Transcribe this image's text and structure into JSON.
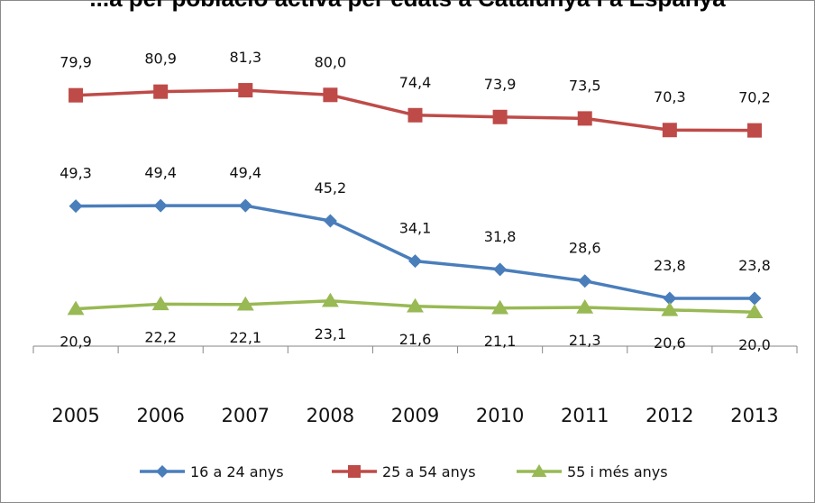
{
  "chart_data": {
    "type": "line",
    "title": "...a per població activa per edats a Catalunya i a Espanya",
    "categories": [
      "2005",
      "2006",
      "2007",
      "2008",
      "2009",
      "2010",
      "2011",
      "2012",
      "2013"
    ],
    "series": [
      {
        "name": "16 a 24 anys",
        "color": "#4a7ebb",
        "marker": "diamond",
        "values": [
          49.3,
          49.4,
          49.4,
          45.2,
          34.1,
          31.8,
          28.6,
          23.8,
          23.8
        ],
        "labels": [
          "49,3",
          "49,4",
          "49,4",
          "45,2",
          "34,1",
          "31,8",
          "28,6",
          "23,8",
          "23,8"
        ]
      },
      {
        "name": "25 a 54 anys",
        "color": "#be4b48",
        "marker": "square",
        "values": [
          79.9,
          80.9,
          81.3,
          80.0,
          74.4,
          73.9,
          73.5,
          70.3,
          70.2
        ],
        "labels": [
          "79,9",
          "80,9",
          "81,3",
          "80,0",
          "74,4",
          "73,9",
          "73,5",
          "70,3",
          "70,2"
        ]
      },
      {
        "name": "55 i més anys",
        "color": "#98b954",
        "marker": "triangle",
        "values": [
          20.9,
          22.2,
          22.1,
          23.1,
          21.6,
          21.1,
          21.3,
          20.6,
          20.0
        ],
        "labels": [
          "20,9",
          "22,2",
          "22,1",
          "23,1",
          "21,6",
          "21,1",
          "21,3",
          "20,6",
          "20,0"
        ]
      }
    ],
    "grid": false,
    "y_axis_visible": false,
    "legend": "bottom"
  }
}
